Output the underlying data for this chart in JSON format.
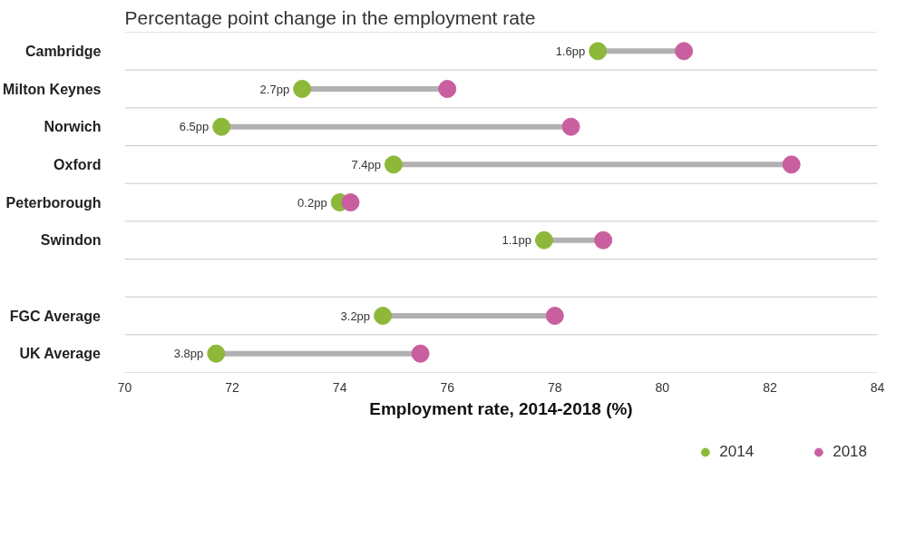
{
  "chart_data": {
    "type": "scatter",
    "orientation": "horizontal",
    "title": "Percentage point change in the employment rate",
    "xlabel": "Employment rate, 2014-2018 (%)",
    "categories": [
      "Cambridge",
      "Milton Keynes",
      "Norwich",
      "Oxford",
      "Peterborough",
      "Swindon",
      null,
      "FGC Average",
      "UK Average"
    ],
    "series": [
      {
        "name": "2014",
        "color": "#8db83a",
        "values": [
          78.8,
          73.3,
          71.8,
          75.0,
          74.0,
          77.8,
          null,
          74.8,
          71.7
        ]
      },
      {
        "name": "2018",
        "color": "#c95f9f",
        "values": [
          80.4,
          76.0,
          78.3,
          82.4,
          74.2,
          78.9,
          null,
          78.0,
          75.5
        ]
      }
    ],
    "annotations": [
      {
        "text": "1.6pp",
        "x": 78.8,
        "y": "Cambridge"
      },
      {
        "text": "2.7pp",
        "x": 73.3,
        "y": "Milton Keynes"
      },
      {
        "text": "6.5pp",
        "x": 71.8,
        "y": "Norwich"
      },
      {
        "text": "7.4pp",
        "x": 75.0,
        "y": "Oxford"
      },
      {
        "text": "0.2pp",
        "x": 74.0,
        "y": "Peterborough"
      },
      {
        "text": "1.1pp",
        "x": 77.8,
        "y": "Swindon"
      },
      {
        "text": "3.2pp",
        "x": 74.8,
        "y": "FGC Average"
      },
      {
        "text": "3.8pp",
        "x": 71.7,
        "y": "UK Average"
      }
    ],
    "xlim": [
      70,
      84
    ],
    "xticks": [
      70,
      72,
      74,
      76,
      78,
      80,
      82,
      84
    ],
    "grid": "y",
    "legend": "bottom right",
    "marker": "circle"
  }
}
